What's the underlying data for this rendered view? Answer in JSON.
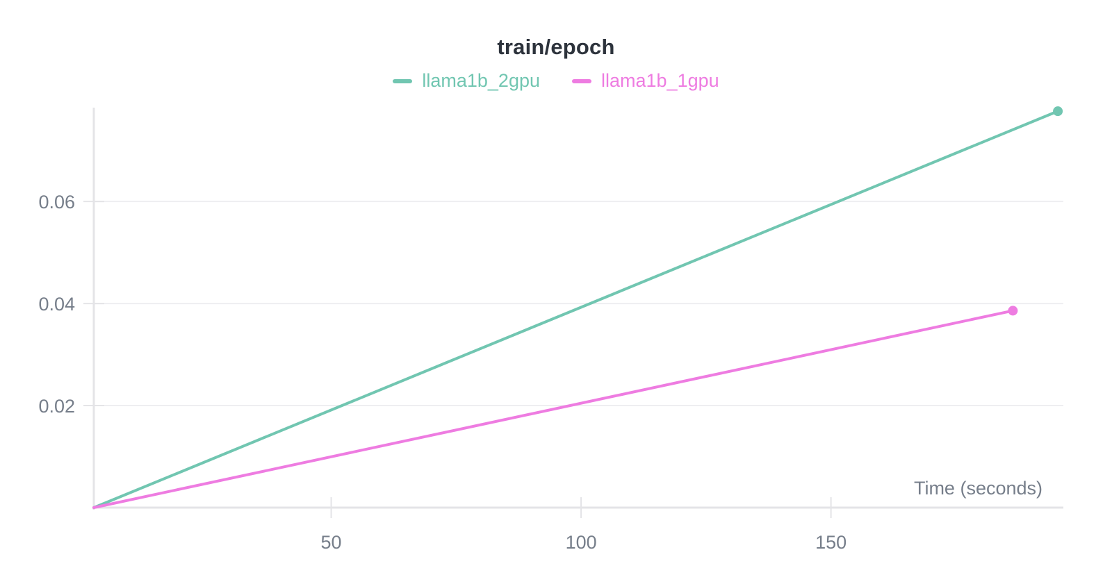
{
  "chart_data": {
    "type": "line",
    "title": "train/epoch",
    "xlabel": "Time (seconds)",
    "ylabel": "",
    "xlim": [
      2.5,
      196.5
    ],
    "ylim": [
      0,
      0.0784
    ],
    "x_ticks": [
      {
        "value": 50,
        "label": "50"
      },
      {
        "value": 100,
        "label": "100"
      },
      {
        "value": 150,
        "label": "150"
      }
    ],
    "y_ticks": [
      {
        "value": 0.02,
        "label": "0.02"
      },
      {
        "value": 0.04,
        "label": "0.04"
      },
      {
        "value": 0.06,
        "label": "0.06"
      }
    ],
    "grid": "horizontal-only",
    "legend_position": "top-center",
    "series": [
      {
        "name": "llama1b_2gpu",
        "color": "#71c6b1",
        "x": [
          2.5,
          195.4
        ],
        "y": [
          0,
          0.0777
        ],
        "end_marker": true
      },
      {
        "name": "llama1b_1gpu",
        "color": "#ee7ce1",
        "x": [
          2.5,
          186.4
        ],
        "y": [
          0,
          0.0386
        ],
        "end_marker": true
      }
    ]
  },
  "colors": {
    "title_text": "#2d333c",
    "tick_text": "#767e8a",
    "axis_line": "#e4e4e7",
    "grid_line": "#eeeef1",
    "background": "#ffffff"
  }
}
